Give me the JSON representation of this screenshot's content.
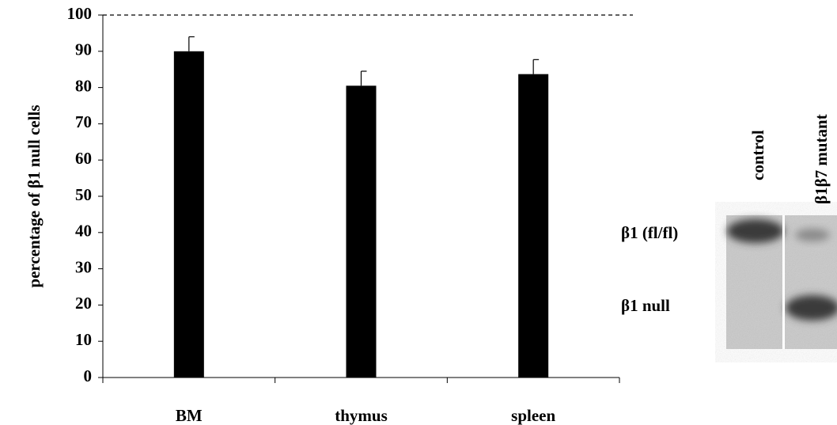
{
  "chart_data": {
    "type": "bar",
    "ylabel": "percentage of β1 null cells",
    "categories": [
      "BM",
      "thymus",
      "spleen"
    ],
    "values": [
      90,
      80.5,
      83.7
    ],
    "errors": [
      4,
      4,
      4
    ],
    "color": "#000000",
    "ylim": [
      0,
      100
    ],
    "yticks": [
      0,
      10,
      20,
      30,
      40,
      50,
      60,
      70,
      80,
      90,
      100
    ],
    "reference_line": 100
  },
  "gel": {
    "lanes": [
      "control",
      "β1β7 mutant"
    ],
    "bands": [
      "β1 (fl/fl)",
      "β1 null"
    ]
  }
}
